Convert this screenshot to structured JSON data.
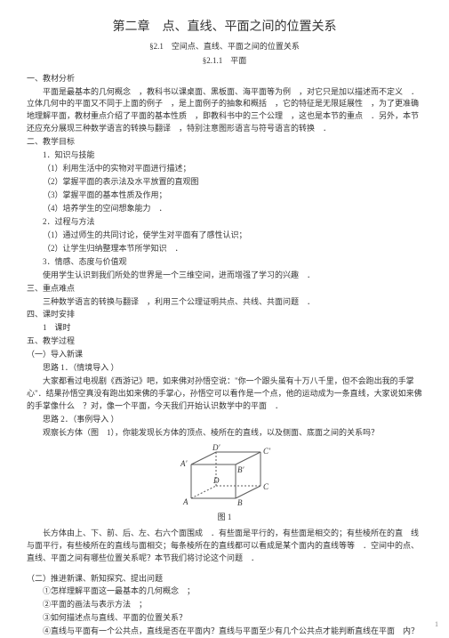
{
  "header": {
    "chapter_title": "第二章　点、直线、平面之间的位置关系",
    "sub1_prefix": "§2.1",
    "sub1_rest": "空间点、直线、平面之间的位置关系",
    "sub2_prefix": "§2.1.1",
    "sub2_rest": "平面"
  },
  "s1": {
    "h": "一、教材分析",
    "p1": "平面是最基本的几何概念　，教科书以课桌面、黑板面、海平面等为例　，对它只是加以描述而不定义　．立体几何中的平面又不同于上面的例子　，是上面例子的抽象和概括　，它的特征是无限延展性　，为了更准确地理解平面，教材重点介绍了平面的基本性质　，即教科书中的三个公理　，这也是本节的重点　．另外，本节还应充分展现三种数学语言的转换与翻译　，特别注意图形语言与符号语言的转换　．"
  },
  "s2": {
    "h": "二、教学目标",
    "g1h": "1．知识与技能",
    "g1a": "（1）利用生活中的实物对平面进行描述；",
    "g1b": "（2）掌握平面的表示法及水平放置的直观图",
    "g1c": "（3）掌握平面的基本性质及作用；",
    "g1d": "（4）培养学生的空间想象能力　．",
    "g2h": "2．过程与方法",
    "g2a": "（1）通过师生的共同讨论，使学生对平面有了感性认识；",
    "g2b": "（2）让学生归纳整理本节所学知识　．",
    "g3h": "3．情感、态度与价值观",
    "g3a": "使用学生认识到我们所处的世界是一个三维空间，进而增强了学习的兴趣　．"
  },
  "s3": {
    "h": "三、重点难点",
    "p": "三种数学语言的转换与翻译　，利用三个公理证明共点、共线、共面问题　．"
  },
  "s4": {
    "h": "四、课时安排",
    "p": "1　课时"
  },
  "s5": {
    "h": "五、教学过程",
    "a_h": "（一）导入新课",
    "a_s1": "思路 1．（情境导入 ）",
    "a_p1": "大家都看过电视剧《西游记》吧，如来佛对孙悟空说：\"你一个跟头虽有十万八千里，但不会跑出我的手掌心\"．结果孙悟空真没有跑出如来佛的手掌心，孙悟空可以看作是一个点，他的运动成为一条直线，大家说如来佛的手掌像什么　？对，像一个平面，今天我们开始认识数学中的平面　．",
    "a_s2": "思路 2．（事例导入 ）",
    "a_p2": "观察长方体（图　1），你能发现长方体的顶点、棱所在的直线，以及侧面、底面之间的关系吗？",
    "fig_caption": "图 1",
    "fig_labels": {
      "A": "A",
      "B": "B",
      "C": "C",
      "D": "D",
      "Ap": "A′",
      "Bp": "B′",
      "Cp": "C′",
      "Dp": "D′"
    },
    "a_p3": "长方体由上、下、前、后、左、右六个面围成　．有些面是平行的，有些面是相交的；有些棱所在的直　线与面平行，有些棱所在的直线与面相交；每条棱所在的直线都可以看成是某个面内的直线等等　．空间中的点、直线、平面之间有哪些位置关系呢？本节我们将讨论这个问题　．",
    "b_h": "（二）推进新课、新知探究、提出问题",
    "b_q1": "①怎样理解平面这一最基本的几何概念　；",
    "b_q2": "②平面的画法与表示方法　；",
    "b_q3": "③如何描述点与直线、平面的位置关系？",
    "b_q4": "④直线与平面有一个公共点，直线是否在平面内？直线与平面至少有几个公共点才能判断直线在平面　内？"
  },
  "page": "1",
  "cuboid": {
    "stroke": "#5a5a5a",
    "label_color": "#333333",
    "italic_font": "italic 9px 'Times New Roman', serif"
  }
}
